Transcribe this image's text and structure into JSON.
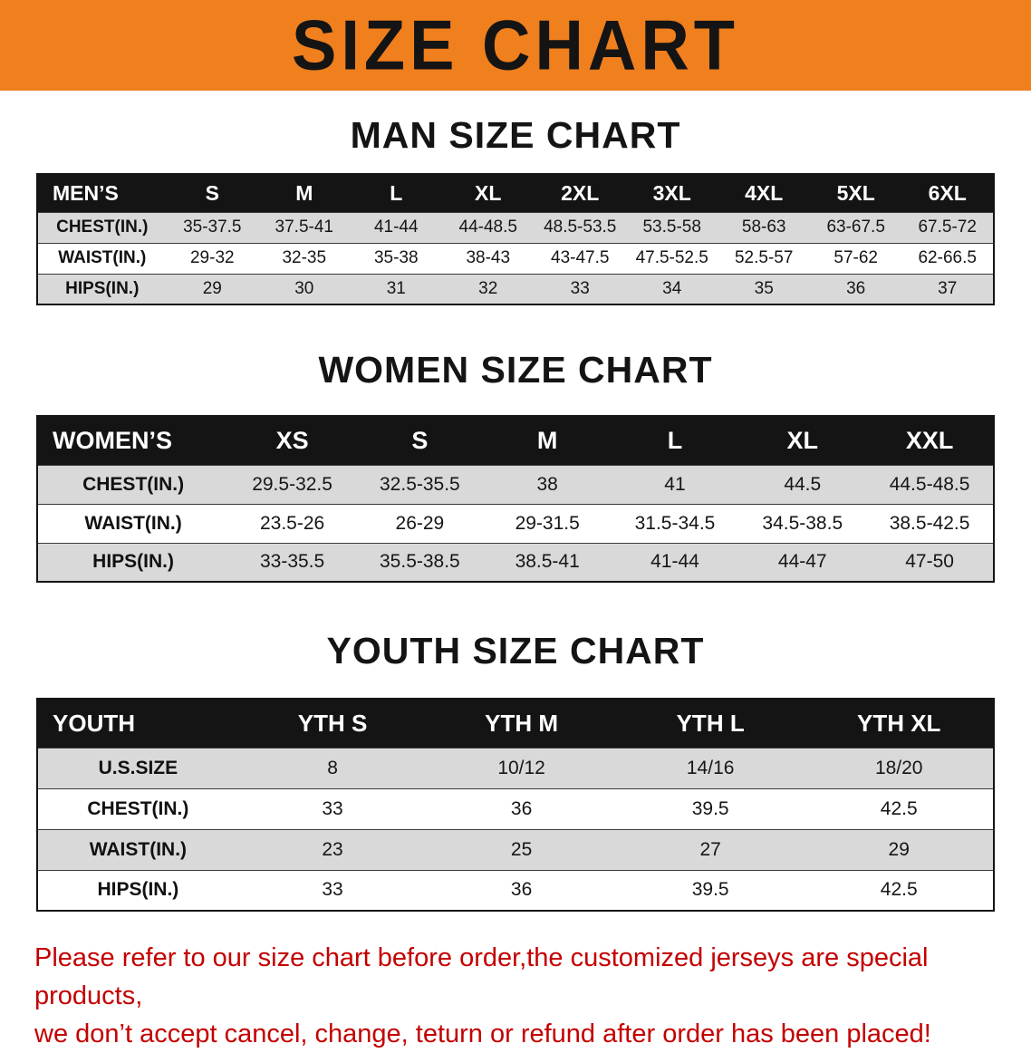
{
  "banner": {
    "title": "SIZE CHART"
  },
  "sections": [
    {
      "title": "MAN SIZE CHART",
      "header": [
        "MEN’S",
        "S",
        "M",
        "L",
        "XL",
        "2XL",
        "3XL",
        "4XL",
        "5XL",
        "6XL"
      ],
      "rows": [
        [
          "CHEST(IN.)",
          "35-37.5",
          "37.5-41",
          "41-44",
          "44-48.5",
          "48.5-53.5",
          "53.5-58",
          "58-63",
          "63-67.5",
          "67.5-72"
        ],
        [
          "WAIST(IN.)",
          "29-32",
          "32-35",
          "35-38",
          "38-43",
          "43-47.5",
          "47.5-52.5",
          "52.5-57",
          "57-62",
          "62-66.5"
        ],
        [
          "HIPS(IN.)",
          "29",
          "30",
          "31",
          "32",
          "33",
          "34",
          "35",
          "36",
          "37"
        ]
      ]
    },
    {
      "title": "WOMEN SIZE CHART",
      "header": [
        "WOMEN’S",
        "XS",
        "S",
        "M",
        "L",
        "XL",
        "XXL"
      ],
      "rows": [
        [
          "CHEST(IN.)",
          "29.5-32.5",
          "32.5-35.5",
          "38",
          "41",
          "44.5",
          "44.5-48.5"
        ],
        [
          "WAIST(IN.)",
          "23.5-26",
          "26-29",
          "29-31.5",
          "31.5-34.5",
          "34.5-38.5",
          "38.5-42.5"
        ],
        [
          "HIPS(IN.)",
          "33-35.5",
          "35.5-38.5",
          "38.5-41",
          "41-44",
          "44-47",
          "47-50"
        ]
      ]
    },
    {
      "title": "YOUTH SIZE CHART",
      "header": [
        "YOUTH",
        "YTH S",
        "YTH M",
        "YTH L",
        "YTH XL"
      ],
      "rows": [
        [
          "U.S.SIZE",
          "8",
          "10/12",
          "14/16",
          "18/20"
        ],
        [
          "CHEST(IN.)",
          "33",
          "36",
          "39.5",
          "42.5"
        ],
        [
          "WAIST(IN.)",
          "23",
          "25",
          "27",
          "29"
        ],
        [
          "HIPS(IN.)",
          "33",
          "36",
          "39.5",
          "42.5"
        ]
      ]
    }
  ],
  "footer": {
    "line1": "Please refer to our size chart before order,the customized jerseys are special products,",
    "line2": "we don’t accept cancel, change, teturn or refund after order has been placed!"
  },
  "colors": {
    "banner_bg": "#f07f1e",
    "table_header_bg": "#141414",
    "row_shade": "#d9d9d9",
    "notice_red": "#c40000"
  }
}
